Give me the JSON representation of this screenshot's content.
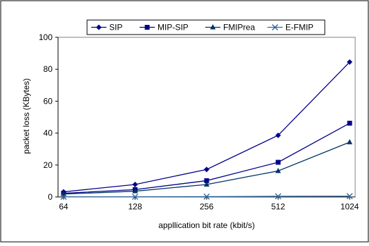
{
  "chart_data": {
    "type": "line",
    "title": "",
    "xlabel": "appllication bit rate (kbit/s)",
    "ylabel": "packet loss (KBytes)",
    "categories": [
      "64",
      "128",
      "256",
      "512",
      "1024"
    ],
    "ylim": [
      0,
      100
    ],
    "yticks": [
      "0",
      "20",
      "40",
      "60",
      "80",
      "100"
    ],
    "grid": false,
    "legend_position": "top",
    "series": [
      {
        "name": "SIP",
        "marker": "diamond",
        "color": "#00008B",
        "values": [
          3.2,
          7.8,
          17.2,
          38.6,
          84.5
        ]
      },
      {
        "name": "MIP-SIP",
        "marker": "square",
        "color": "#00008B",
        "values": [
          2.3,
          4.6,
          10.2,
          21.7,
          46.2
        ]
      },
      {
        "name": "FMIPrea",
        "marker": "triangle",
        "color": "#003366",
        "values": [
          1.8,
          3.6,
          7.8,
          16.3,
          34.3
        ]
      },
      {
        "name": "E-FMIP",
        "marker": "x",
        "color": "#336699",
        "values": [
          0.1,
          0.1,
          0.2,
          0.4,
          0.5
        ]
      }
    ]
  }
}
